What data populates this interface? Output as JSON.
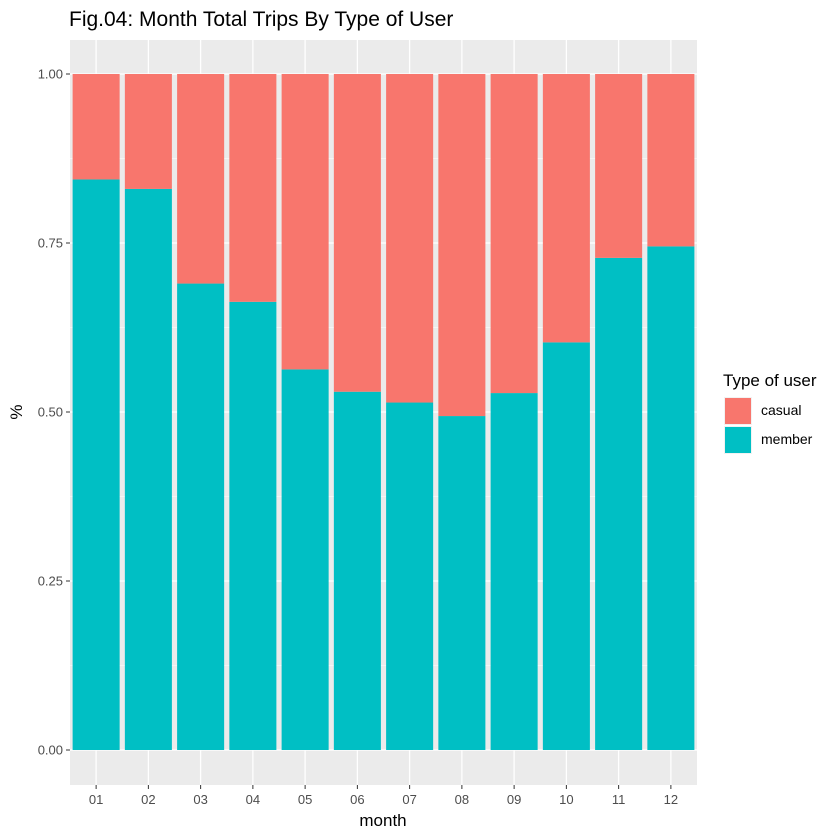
{
  "chart_data": {
    "type": "bar",
    "stacked": true,
    "title": "Fig.04: Month Total Trips By Type of User",
    "xlabel": "month",
    "ylabel": "%",
    "categories": [
      "01",
      "02",
      "03",
      "04",
      "05",
      "06",
      "07",
      "08",
      "09",
      "10",
      "11",
      "12"
    ],
    "series": [
      {
        "name": "casual",
        "color": "#F8766D",
        "values": [
          0.156,
          0.17,
          0.31,
          0.337,
          0.437,
          0.47,
          0.486,
          0.506,
          0.472,
          0.397,
          0.272,
          0.255
        ]
      },
      {
        "name": "member",
        "color": "#00BFC4",
        "values": [
          0.844,
          0.83,
          0.69,
          0.663,
          0.563,
          0.53,
          0.514,
          0.494,
          0.528,
          0.603,
          0.728,
          0.745
        ]
      }
    ],
    "stack_order": [
      "member",
      "casual"
    ],
    "ylim": [
      0,
      1
    ],
    "yticks": [
      "0.00",
      "0.25",
      "0.50",
      "0.75",
      "1.00"
    ],
    "ytick_values": [
      0,
      0.25,
      0.5,
      0.75,
      1.0
    ],
    "grid": true,
    "panel_background": "#EBEBEB",
    "legend": {
      "title": "Type of user",
      "position": "right"
    }
  }
}
